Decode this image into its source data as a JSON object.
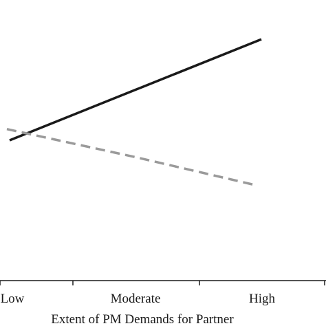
{
  "chart_data": {
    "type": "line",
    "categories": [
      "Low",
      "Moderate",
      "High"
    ],
    "xlabel": "Extent of PM Demands for Partner",
    "ylabel": "",
    "ylim": [
      0,
      10
    ],
    "grid": false,
    "series": [
      {
        "style": "solid",
        "color": "#1a1a1a",
        "values": [
          5.0,
          6.8,
          8.6
        ]
      },
      {
        "style": "dashed",
        "color": "#9a9a9a",
        "values": [
          5.4,
          4.4,
          3.4
        ]
      }
    ]
  }
}
